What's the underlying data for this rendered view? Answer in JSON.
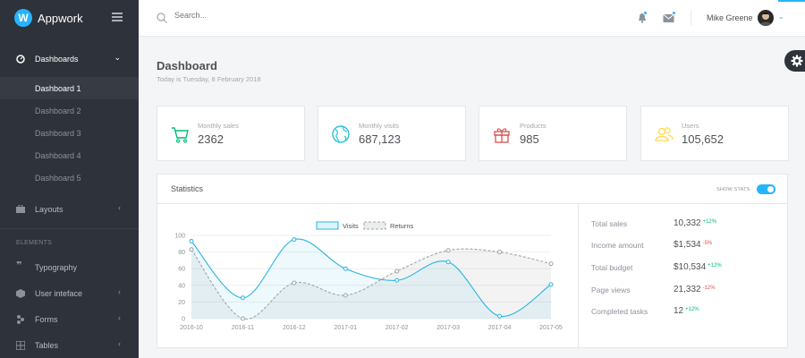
{
  "brand": {
    "name": "Appwork",
    "logo_letter": "W"
  },
  "sidebar": {
    "dashboards_label": "Dashboards",
    "sub_items": [
      "Dashboard 1",
      "Dashboard 2",
      "Dashboard 3",
      "Dashboard 4",
      "Dashboard 5"
    ],
    "active_sub": "Dashboard 1",
    "layouts_label": "Layouts",
    "section_header": "ELEMENTS",
    "typography_label": "Typography",
    "ui_label": "User inteface",
    "forms_label": "Forms",
    "tables_label": "Tables"
  },
  "topbar": {
    "search_placeholder": "Search...",
    "user_name": "Mike Greene"
  },
  "page": {
    "title": "Dashboard",
    "subtitle": "Today is Tuesday, 8 February 2018"
  },
  "stats": [
    {
      "label": "Monthly sales",
      "value": "2362",
      "icon": "cart-icon",
      "color": "#02bc77"
    },
    {
      "label": "Monthly visits",
      "value": "687,123",
      "icon": "globe-icon",
      "color": "#28c3d7"
    },
    {
      "label": "Products",
      "value": "985",
      "icon": "gift-icon",
      "color": "#d9534f"
    },
    {
      "label": "Users",
      "value": "105,652",
      "icon": "users-icon",
      "color": "#ffd950"
    }
  ],
  "statistics": {
    "title": "Statistics",
    "show_stats_label": "SHOW STATS",
    "show_stats_on": true,
    "summary": [
      {
        "label": "Total sales",
        "value": "10,332",
        "change": "+12%",
        "positive": true
      },
      {
        "label": "Income amount",
        "value": "$1,534",
        "change": "-5%",
        "positive": false
      },
      {
        "label": "Total budget",
        "value": "$10,534",
        "change": "+12%",
        "positive": true
      },
      {
        "label": "Page views",
        "value": "21,332",
        "change": "-12%",
        "positive": false
      },
      {
        "label": "Completed tasks",
        "value": "12",
        "change": "+12%",
        "positive": true
      }
    ]
  },
  "chart_data": {
    "type": "area",
    "x": [
      "2016-10",
      "2016-11",
      "2016-12",
      "2017-01",
      "2017-02",
      "2017-03",
      "2017-04",
      "2017-05"
    ],
    "yticks": [
      0,
      20,
      40,
      60,
      80,
      100
    ],
    "ylim": [
      0,
      100
    ],
    "series": [
      {
        "name": "Visits",
        "values": [
          93,
          25,
          95,
          60,
          46,
          68,
          3,
          41
        ],
        "color": "#28b4e0"
      },
      {
        "name": "Returns",
        "values": [
          83,
          0,
          43,
          28,
          57,
          82,
          80,
          66
        ],
        "color": "#a0a4a8"
      }
    ],
    "legend": "top"
  }
}
